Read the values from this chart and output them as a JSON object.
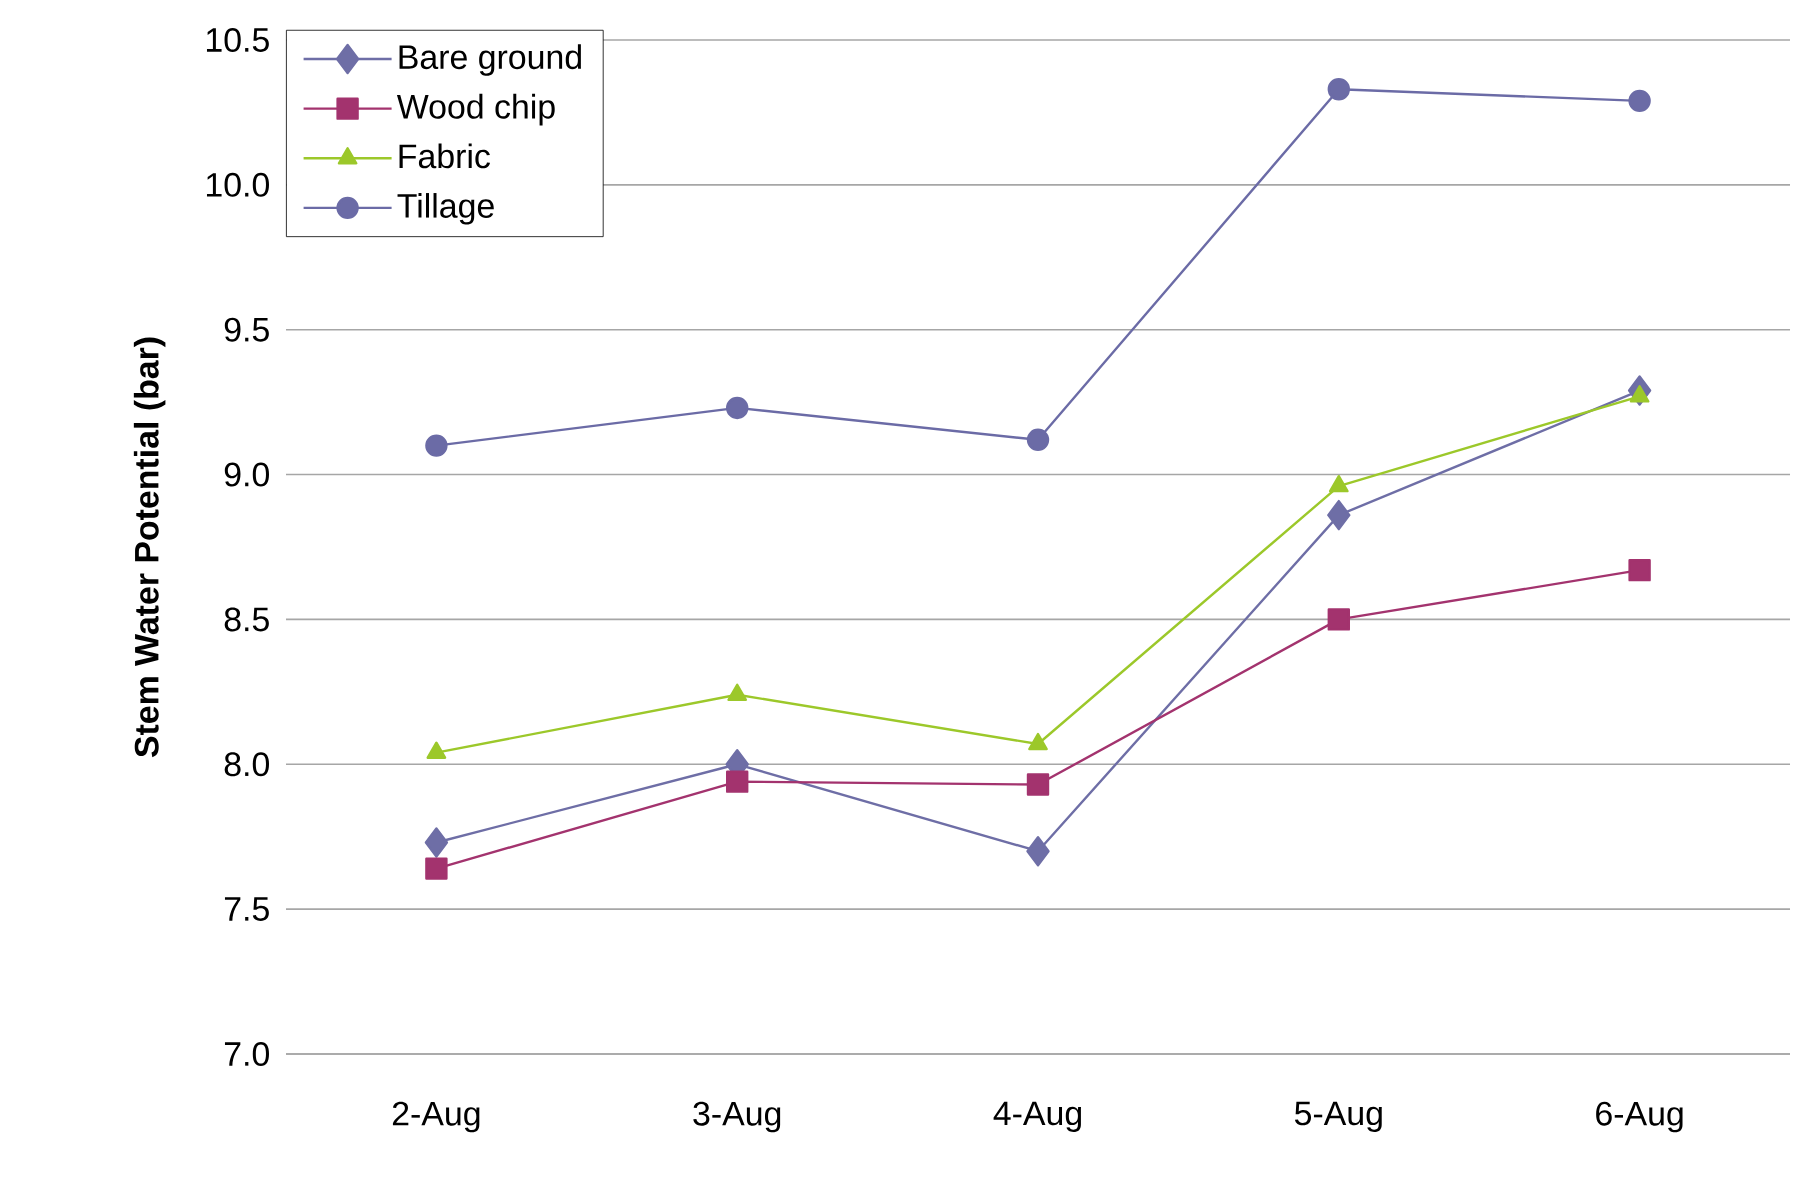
{
  "chart_data": {
    "type": "line",
    "ylabel": "Stem Water Potential (bar)",
    "categories": [
      "2-Aug",
      "3-Aug",
      "4-Aug",
      "5-Aug",
      "6-Aug"
    ],
    "series": [
      {
        "name": "Bare ground",
        "color": "#6e6ea6",
        "marker": "diamond",
        "values": [
          7.73,
          8.0,
          7.7,
          8.86,
          9.29
        ]
      },
      {
        "name": "Wood chip",
        "color": "#a3336e",
        "marker": "square",
        "values": [
          7.64,
          7.94,
          7.93,
          8.5,
          8.67
        ]
      },
      {
        "name": "Fabric",
        "color": "#9cc82a",
        "marker": "triangle",
        "values": [
          8.04,
          8.24,
          8.07,
          8.96,
          9.27
        ]
      },
      {
        "name": "Tillage",
        "color": "#6b6ba6",
        "marker": "circle",
        "values": [
          9.1,
          9.23,
          9.12,
          10.33,
          10.29
        ]
      }
    ],
    "ylim": [
      7.0,
      10.5
    ],
    "yticks": [
      {
        "value": 7.0,
        "label": "7.0"
      },
      {
        "value": 7.5,
        "label": "7.5"
      },
      {
        "value": 8.0,
        "label": "8.0"
      },
      {
        "value": 8.5,
        "label": "8.5"
      },
      {
        "value": 9.0,
        "label": "9.0"
      },
      {
        "value": 9.5,
        "label": "9.5"
      },
      {
        "value": 10.0,
        "label": "10.0"
      },
      {
        "value": 10.5,
        "label": "10.5"
      }
    ],
    "grid": "y",
    "legend": "top left",
    "line_style": "solid"
  }
}
